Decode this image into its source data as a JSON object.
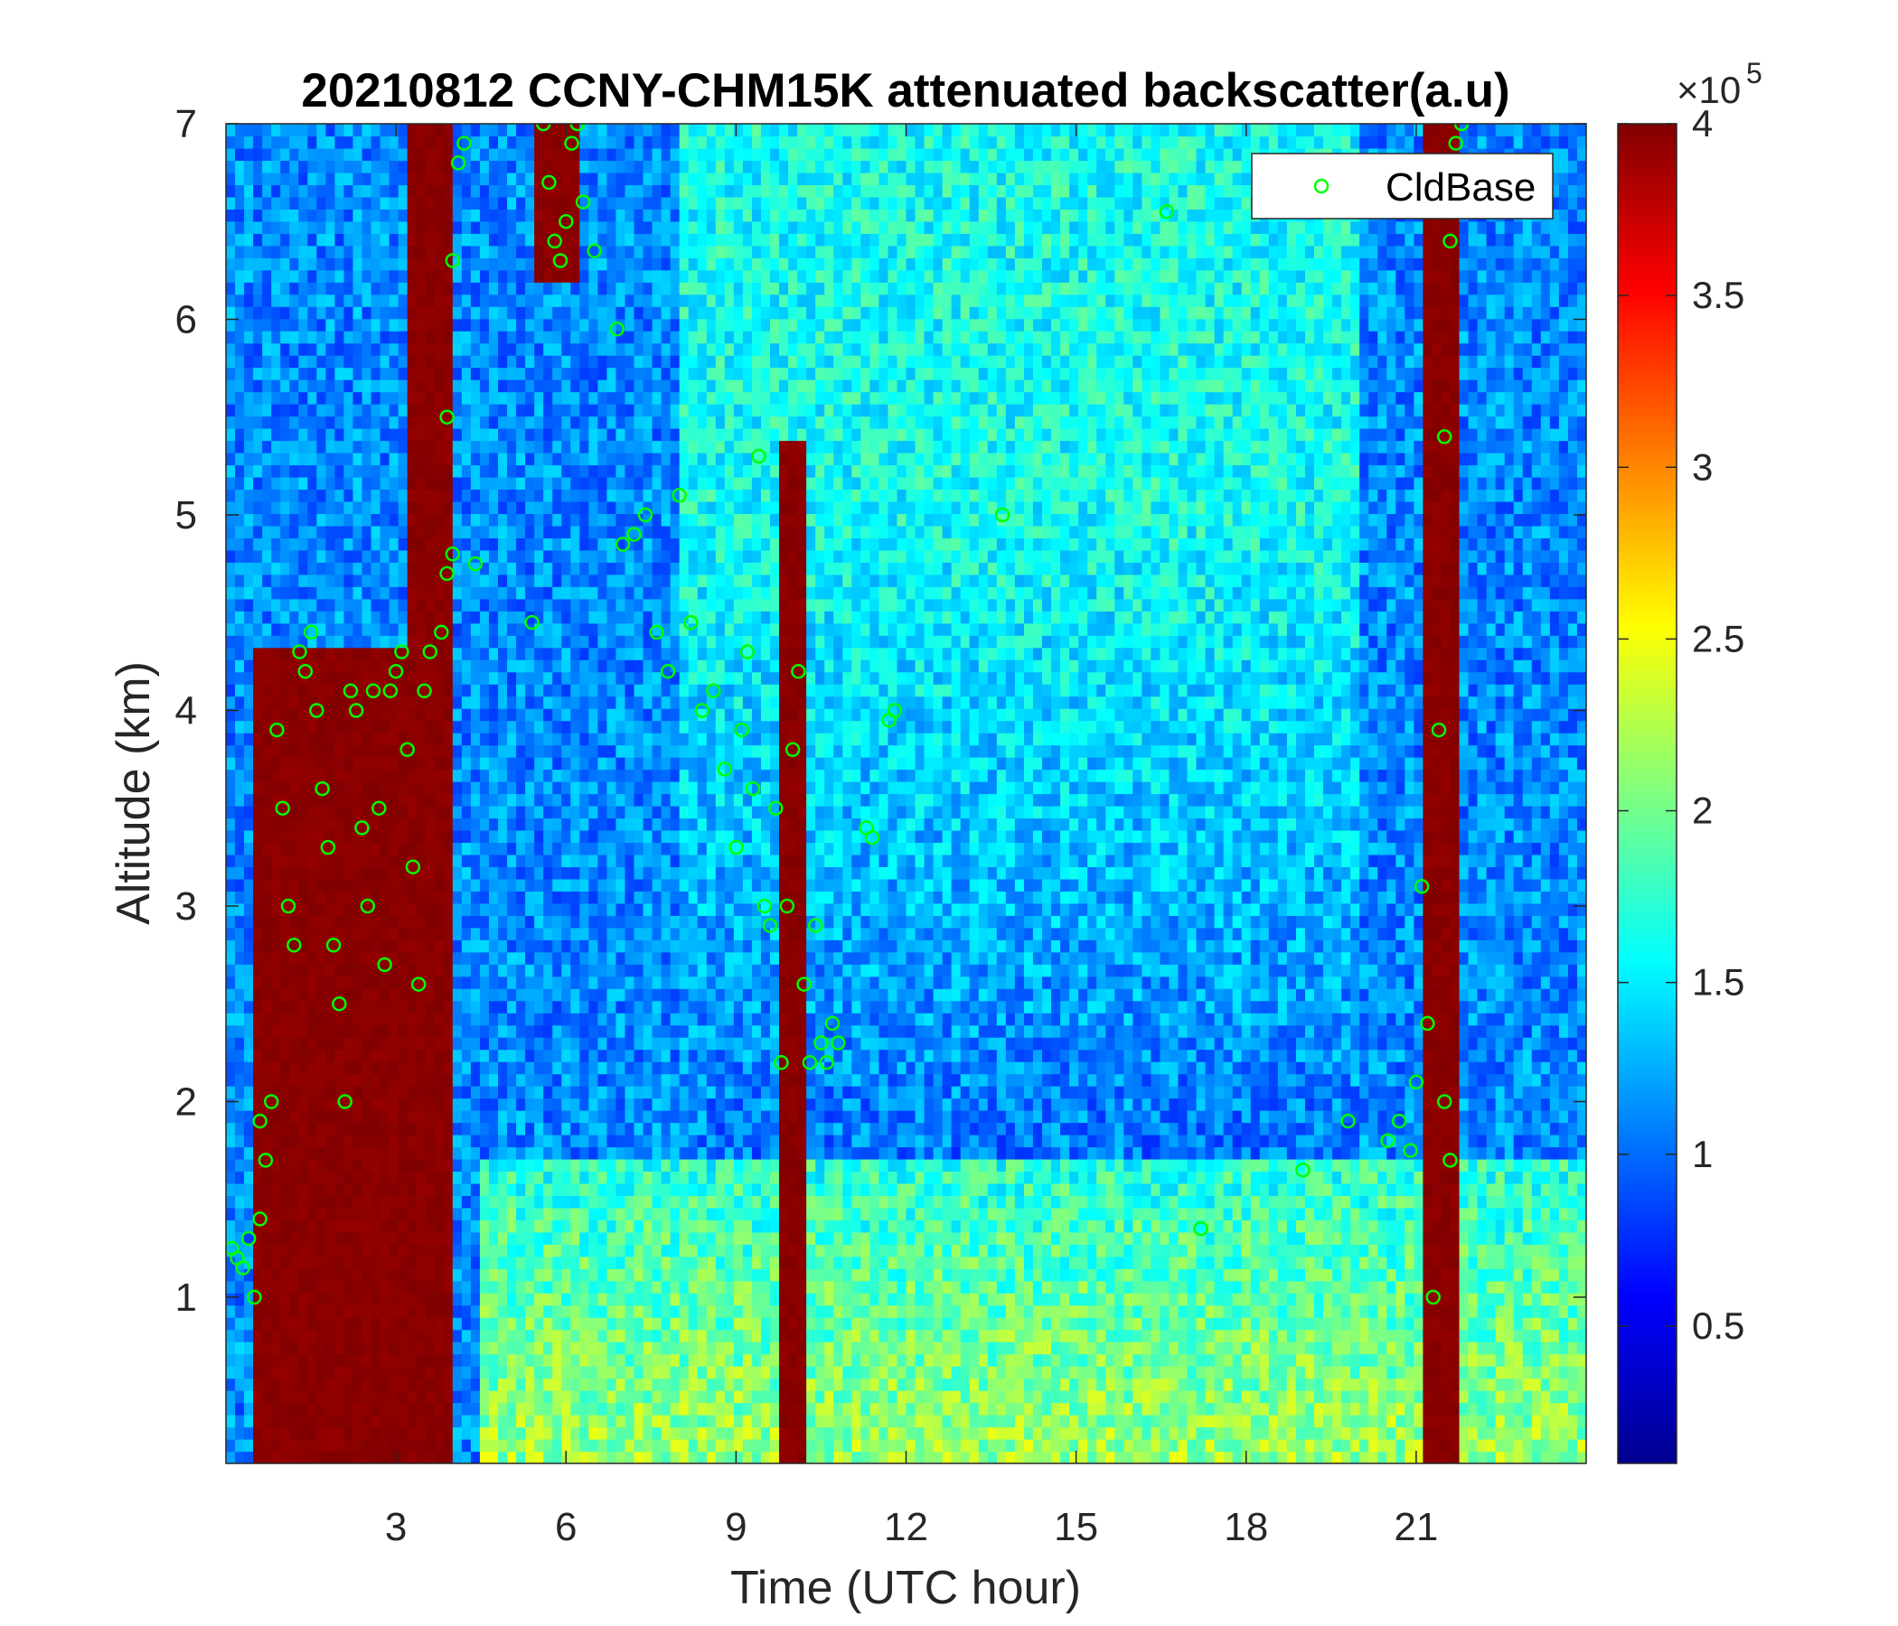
{
  "chart_data": {
    "type": "heatmap",
    "title": "20210812 CCNY-CHM15K attenuated backscatter(a.u)",
    "xlabel": "Time (UTC hour)",
    "ylabel": "Altitude (km)",
    "xlim": [
      0,
      24
    ],
    "ylim": [
      0.15,
      7
    ],
    "xticks": [
      3,
      6,
      9,
      12,
      15,
      18,
      21
    ],
    "xtick_labels": [
      "3",
      "6",
      "9",
      "12",
      "15",
      "18",
      "21"
    ],
    "yticks": [
      1,
      2,
      3,
      4,
      5,
      6,
      7
    ],
    "ytick_labels": [
      "1",
      "2",
      "3",
      "4",
      "5",
      "6",
      "7"
    ],
    "colorbar": {
      "colormap": "jet",
      "range": [
        0.1,
        4
      ],
      "ticks": [
        0.5,
        1,
        1.5,
        2,
        2.5,
        3,
        3.5,
        4
      ],
      "tick_labels": [
        "0.5",
        "1",
        "1.5",
        "2",
        "2.5",
        "3",
        "3.5",
        "4"
      ],
      "exponent_base": "×10",
      "exponent_power": "5"
    },
    "legend": {
      "placement": "top-right",
      "entries": [
        "CldBase"
      ]
    },
    "series_style": {
      "CldBase": {
        "marker": "circle-open",
        "color": "#00ff00"
      }
    },
    "features": [
      {
        "kind": "cloud",
        "t": [
          0.5,
          3.5
        ],
        "alt": [
          0.15,
          4.3
        ]
      },
      {
        "kind": "cloud",
        "t": [
          3.2,
          4.0
        ],
        "alt": [
          0.15,
          7.0
        ]
      },
      {
        "kind": "cloud",
        "t": [
          5.5,
          6.3
        ],
        "alt": [
          6.2,
          7.0
        ]
      },
      {
        "kind": "cloud",
        "t": [
          9.7,
          10.3
        ],
        "alt": [
          0.15,
          5.4
        ]
      },
      {
        "kind": "cloud",
        "t": [
          21.1,
          21.7
        ],
        "alt": [
          0.15,
          7.0
        ]
      },
      {
        "kind": "boundary-layer",
        "t": [
          4.5,
          24.0
        ],
        "alt": [
          0.15,
          1.7
        ]
      }
    ],
    "series": [
      {
        "name": "CldBase",
        "points": [
          [
            0.1,
            1.25
          ],
          [
            0.2,
            1.2
          ],
          [
            0.3,
            1.15
          ],
          [
            0.4,
            1.3
          ],
          [
            0.5,
            1.0
          ],
          [
            0.6,
            1.4
          ],
          [
            0.7,
            1.7
          ],
          [
            0.8,
            2.0
          ],
          [
            0.6,
            1.9
          ],
          [
            0.9,
            3.9
          ],
          [
            1.0,
            3.5
          ],
          [
            1.1,
            3.0
          ],
          [
            1.2,
            2.8
          ],
          [
            1.3,
            4.3
          ],
          [
            1.4,
            4.2
          ],
          [
            1.5,
            4.4
          ],
          [
            1.6,
            4.0
          ],
          [
            1.7,
            3.6
          ],
          [
            1.8,
            3.3
          ],
          [
            1.9,
            2.8
          ],
          [
            2.0,
            2.5
          ],
          [
            2.1,
            2.0
          ],
          [
            2.2,
            4.1
          ],
          [
            2.3,
            4.0
          ],
          [
            2.4,
            3.4
          ],
          [
            2.5,
            3.0
          ],
          [
            2.6,
            4.1
          ],
          [
            2.7,
            3.5
          ],
          [
            2.8,
            2.7
          ],
          [
            2.9,
            4.1
          ],
          [
            3.0,
            4.2
          ],
          [
            3.1,
            4.3
          ],
          [
            3.2,
            3.8
          ],
          [
            3.3,
            3.2
          ],
          [
            3.4,
            2.6
          ],
          [
            3.5,
            4.1
          ],
          [
            3.6,
            4.3
          ],
          [
            3.8,
            4.4
          ],
          [
            3.9,
            4.7
          ],
          [
            4.0,
            4.8
          ],
          [
            3.9,
            5.5
          ],
          [
            4.0,
            6.3
          ],
          [
            4.1,
            6.8
          ],
          [
            4.2,
            6.9
          ],
          [
            4.4,
            4.75
          ],
          [
            5.4,
            4.45
          ],
          [
            5.6,
            7.0
          ],
          [
            5.7,
            6.7
          ],
          [
            5.8,
            6.4
          ],
          [
            5.9,
            6.3
          ],
          [
            6.0,
            6.5
          ],
          [
            6.1,
            6.9
          ],
          [
            6.2,
            7.0
          ],
          [
            6.3,
            6.6
          ],
          [
            6.5,
            6.35
          ],
          [
            6.9,
            5.95
          ],
          [
            7.0,
            4.85
          ],
          [
            7.2,
            4.9
          ],
          [
            7.4,
            5.0
          ],
          [
            7.6,
            4.4
          ],
          [
            7.8,
            4.2
          ],
          [
            8.0,
            5.1
          ],
          [
            8.2,
            4.45
          ],
          [
            8.4,
            4.0
          ],
          [
            8.6,
            4.1
          ],
          [
            8.8,
            3.7
          ],
          [
            9.0,
            3.3
          ],
          [
            9.1,
            3.9
          ],
          [
            9.2,
            4.3
          ],
          [
            9.3,
            3.6
          ],
          [
            9.4,
            5.3
          ],
          [
            9.5,
            3.0
          ],
          [
            9.6,
            2.9
          ],
          [
            9.7,
            3.5
          ],
          [
            9.8,
            2.2
          ],
          [
            9.9,
            3.0
          ],
          [
            10.0,
            3.8
          ],
          [
            10.1,
            4.2
          ],
          [
            10.2,
            2.6
          ],
          [
            10.3,
            2.2
          ],
          [
            10.4,
            2.9
          ],
          [
            10.5,
            2.3
          ],
          [
            10.6,
            2.2
          ],
          [
            10.7,
            2.4
          ],
          [
            10.8,
            2.3
          ],
          [
            11.3,
            3.4
          ],
          [
            11.4,
            3.35
          ],
          [
            11.7,
            3.95
          ],
          [
            11.8,
            4.0
          ],
          [
            13.7,
            5.0
          ],
          [
            16.6,
            6.55
          ],
          [
            17.2,
            1.35
          ],
          [
            19.0,
            1.65
          ],
          [
            19.8,
            1.9
          ],
          [
            20.5,
            1.8
          ],
          [
            20.7,
            1.9
          ],
          [
            20.9,
            1.75
          ],
          [
            21.0,
            2.1
          ],
          [
            21.1,
            3.1
          ],
          [
            21.2,
            2.4
          ],
          [
            21.3,
            1.0
          ],
          [
            21.4,
            3.9
          ],
          [
            21.5,
            5.4
          ],
          [
            21.6,
            6.4
          ],
          [
            21.7,
            6.9
          ],
          [
            21.8,
            7.0
          ],
          [
            21.5,
            2.0
          ],
          [
            21.6,
            1.7
          ]
        ]
      }
    ]
  }
}
